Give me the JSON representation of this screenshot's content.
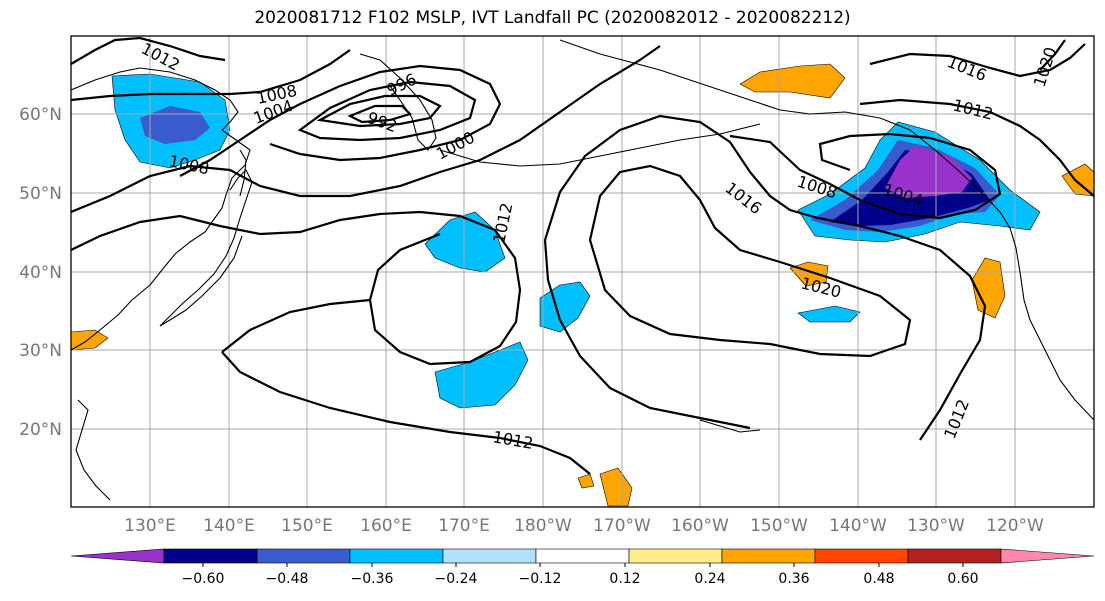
{
  "title": "2020081712 F102 MSLP, IVT Landfall PC (2020082012 - 2020082212)",
  "lat_labels": [
    "60°N",
    "50°N",
    "40°N",
    "30°N",
    "20°N"
  ],
  "lon_labels": [
    "130°E",
    "140°E",
    "150°E",
    "160°E",
    "170°E",
    "180°W",
    "170°W",
    "160°W",
    "150°W",
    "140°W",
    "130°W",
    "120°W"
  ],
  "colorbar": {
    "colors": [
      "#9932cc",
      "#00008b",
      "#3a5bcd",
      "#00bfff",
      "#b2e0ff",
      "#ffffff",
      "#ffec8b",
      "#ffa500",
      "#ff4500",
      "#b22222",
      "#ff88aa"
    ],
    "tick_labels": [
      "−0.60",
      "−0.48",
      "−0.36",
      "−0.24",
      "−0.12",
      "0.12",
      "0.24",
      "0.36",
      "0.48",
      "0.60"
    ]
  },
  "isobar_labels": [
    "1012",
    "1008",
    "1004",
    "996",
    "992",
    "1000",
    "1008",
    "1012",
    "1016",
    "1008",
    "1004",
    "1016",
    "1012",
    "1020",
    "1020",
    "1012",
    "1012"
  ]
}
